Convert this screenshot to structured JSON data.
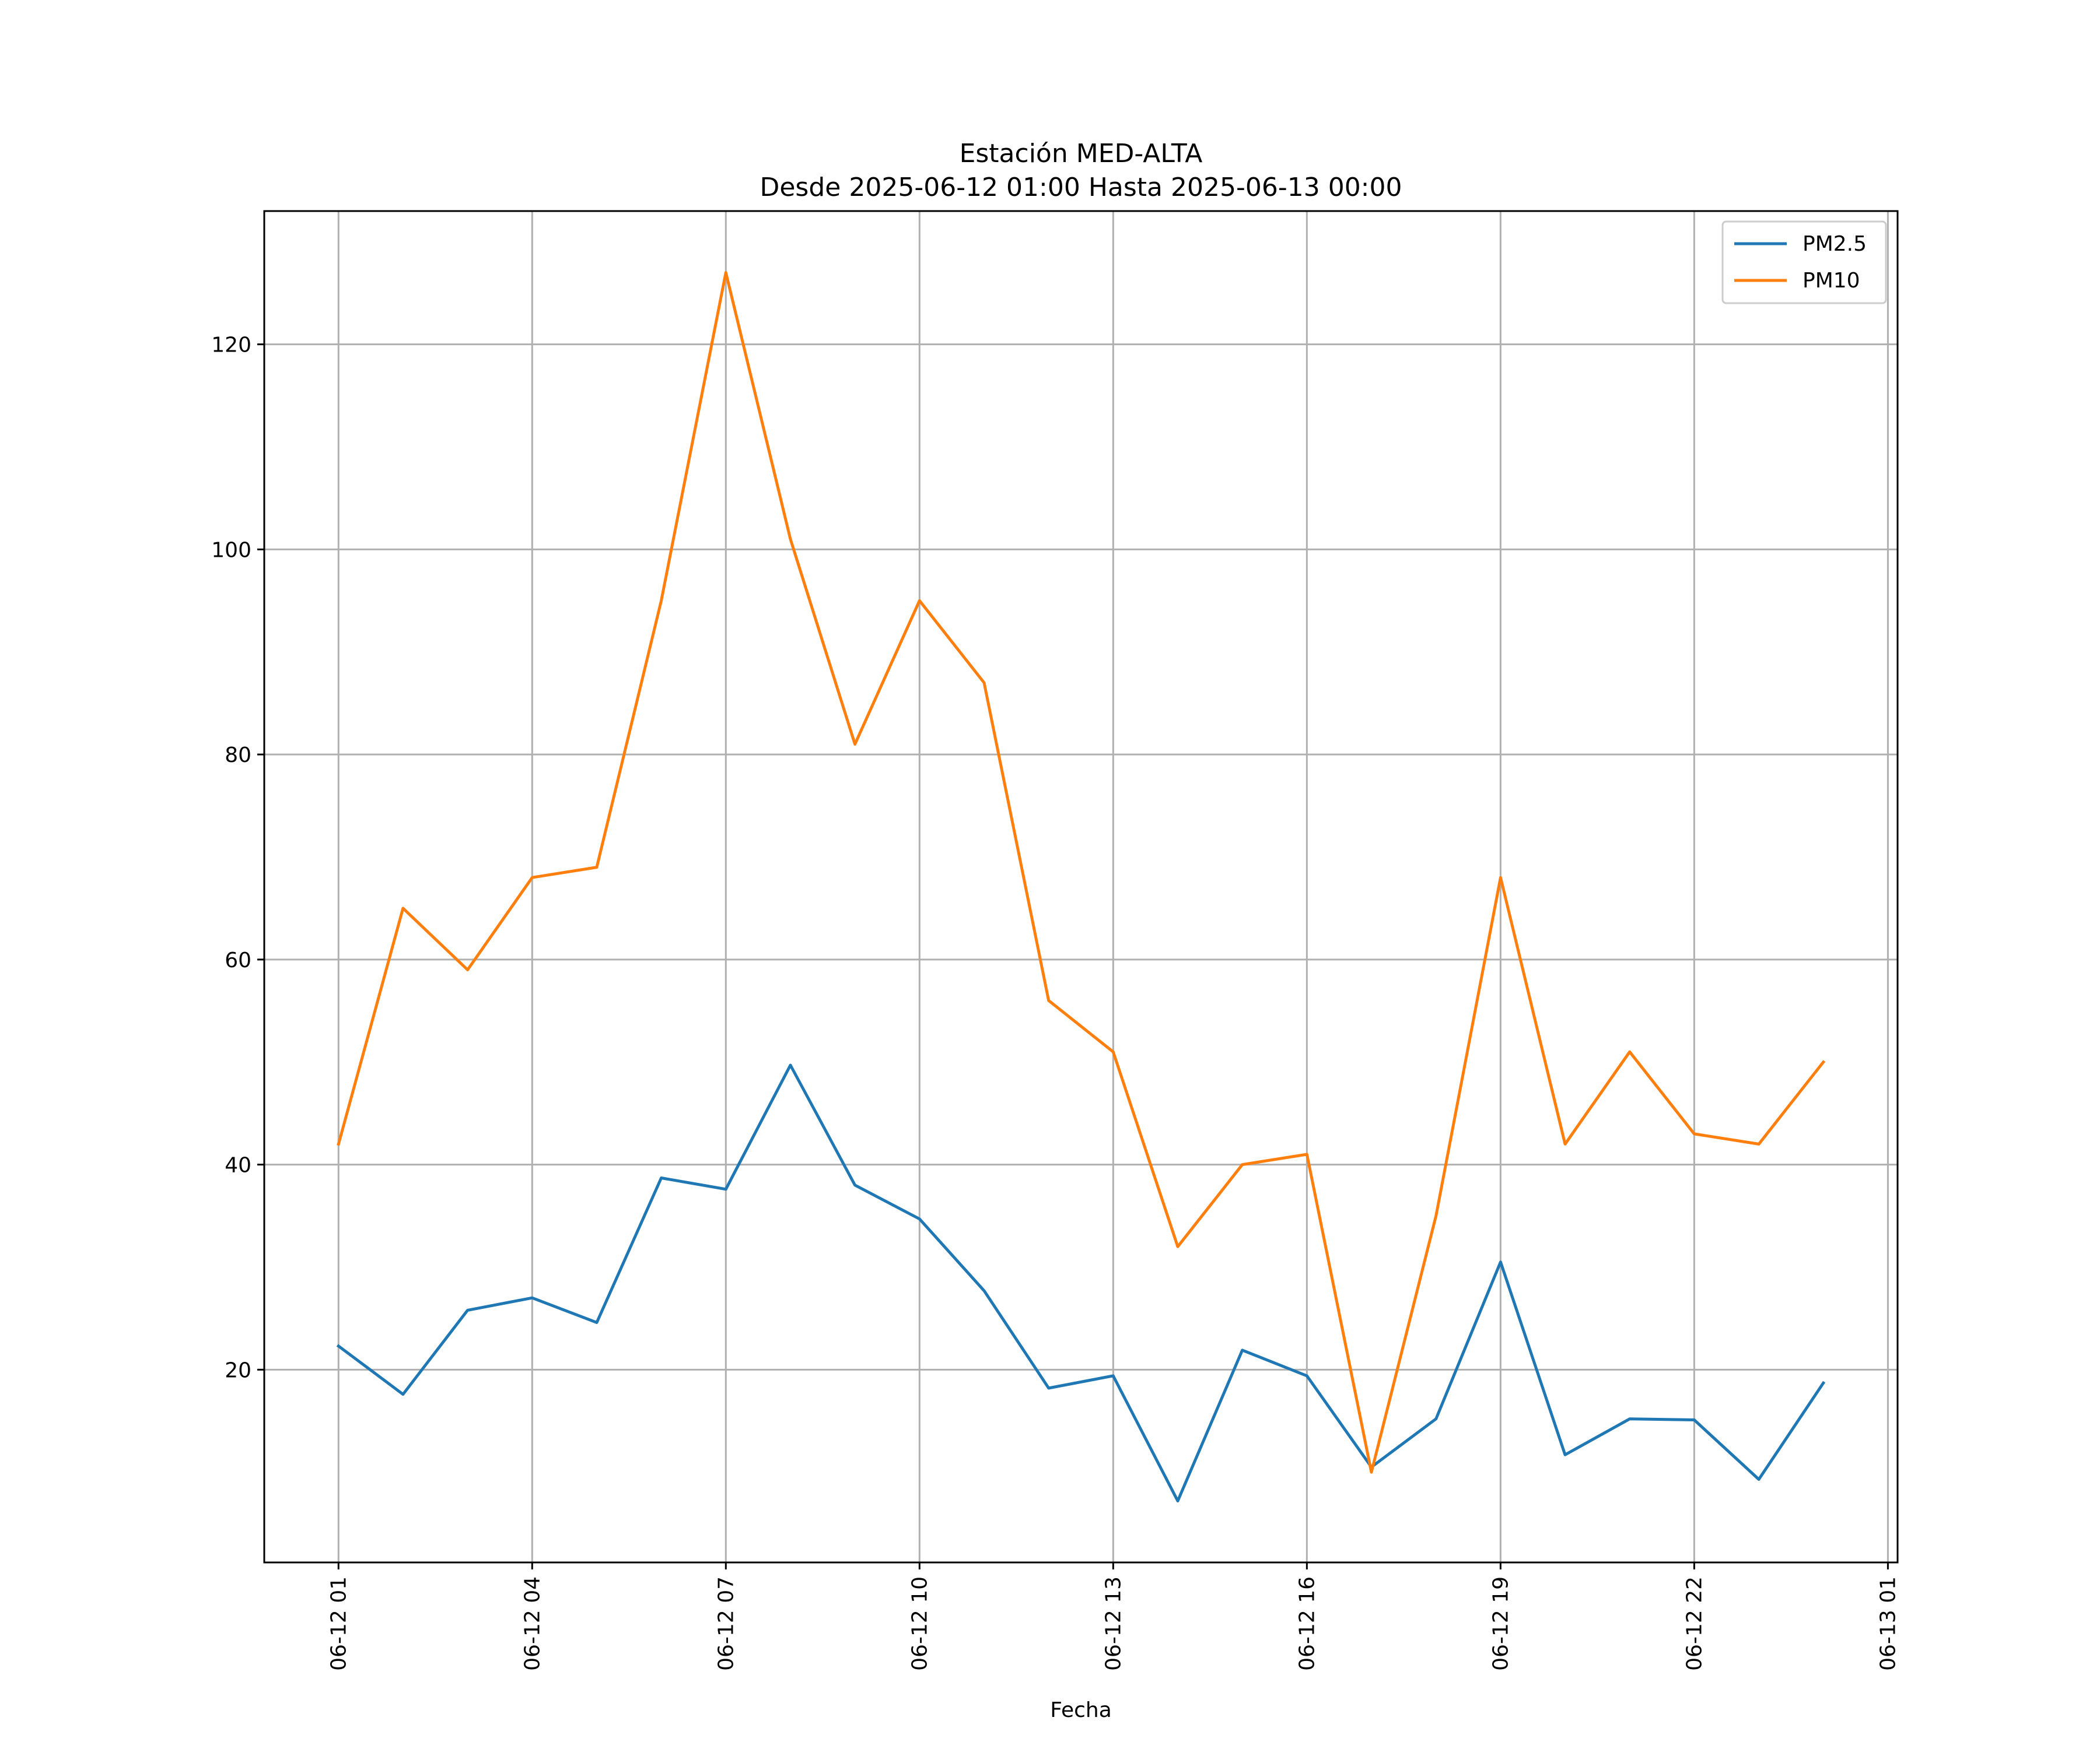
{
  "chart_data": {
    "type": "line",
    "title": "Estación MED-ALTA",
    "subtitle": "Desde 2025-06-12 01:00 Hasta 2025-06-13 00:00",
    "xlabel": "Fecha",
    "ylabel": "",
    "x": [
      "2025-06-12 01:00",
      "2025-06-12 02:00",
      "2025-06-12 03:00",
      "2025-06-12 04:00",
      "2025-06-12 05:00",
      "2025-06-12 06:00",
      "2025-06-12 07:00",
      "2025-06-12 08:00",
      "2025-06-12 09:00",
      "2025-06-12 10:00",
      "2025-06-12 11:00",
      "2025-06-12 12:00",
      "2025-06-12 13:00",
      "2025-06-12 14:00",
      "2025-06-12 15:00",
      "2025-06-12 16:00",
      "2025-06-12 17:00",
      "2025-06-12 18:00",
      "2025-06-12 19:00",
      "2025-06-12 20:00",
      "2025-06-12 21:00",
      "2025-06-12 22:00",
      "2025-06-12 23:00",
      "2025-06-13 00:00"
    ],
    "series": [
      {
        "name": "PM2.5",
        "color": "#1f77b4",
        "values": [
          22.3,
          17.6,
          25.8,
          27.0,
          24.6,
          38.7,
          37.6,
          49.7,
          38.0,
          34.7,
          27.7,
          18.2,
          19.4,
          7.2,
          21.9,
          19.4,
          10.5,
          15.2,
          30.5,
          11.7,
          15.2,
          15.1,
          9.3,
          18.7
        ]
      },
      {
        "name": "PM10",
        "color": "#ff7f0e",
        "values": [
          42,
          65,
          59,
          68,
          69,
          95,
          127,
          101,
          81,
          95,
          87,
          56,
          51,
          32,
          40,
          41,
          10,
          35,
          68,
          42,
          51,
          43,
          42,
          50
        ]
      }
    ],
    "xticks": [
      "2025-06-12 01:00",
      "2025-06-12 04:00",
      "2025-06-12 07:00",
      "2025-06-12 10:00",
      "2025-06-12 13:00",
      "2025-06-12 16:00",
      "2025-06-12 19:00",
      "2025-06-12 22:00",
      "2025-06-13 01:00"
    ],
    "xtick_labels": [
      "06-12 01",
      "06-12 04",
      "06-12 07",
      "06-12 10",
      "06-12 13",
      "06-12 16",
      "06-12 19",
      "06-12 22",
      "06-13 01"
    ],
    "yticks": [
      20,
      40,
      60,
      80,
      100,
      120
    ],
    "xlim": [
      "2025-06-11 23:51",
      "2025-06-13 01:09"
    ],
    "ylim": [
      1.2,
      133
    ],
    "grid": true,
    "legend_position": "top-right"
  }
}
